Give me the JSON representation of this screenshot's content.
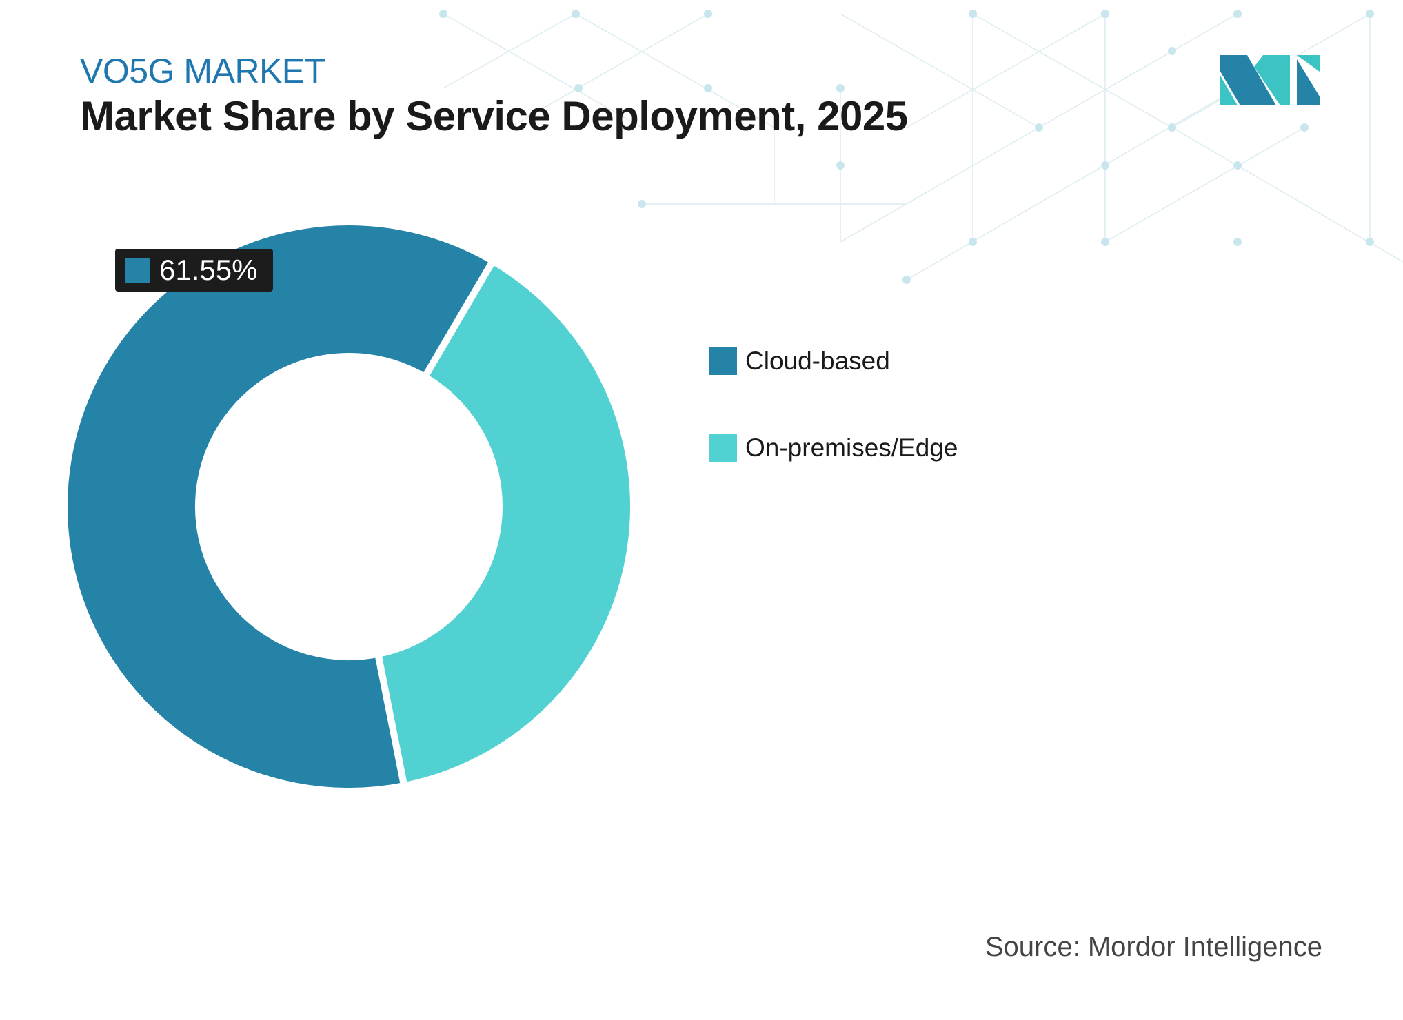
{
  "header": {
    "subtitle": "VO5G MARKET",
    "title": "Market Share by Service Deployment, 2025"
  },
  "logo": {
    "name": "mordor-intelligence-logo",
    "colors": [
      "#2683a8",
      "#3cc4c4"
    ]
  },
  "chart_data": {
    "type": "pie",
    "variant": "donut",
    "categories": [
      "Cloud-based",
      "On-premises/Edge"
    ],
    "values": [
      61.55,
      38.45
    ],
    "colors": [
      "#2683a8",
      "#52d1d2"
    ],
    "data_labels": [
      {
        "category": "Cloud-based",
        "text": "61.55%"
      }
    ],
    "legend_placement": "right"
  },
  "source": "Source: Mordor Intelligence"
}
